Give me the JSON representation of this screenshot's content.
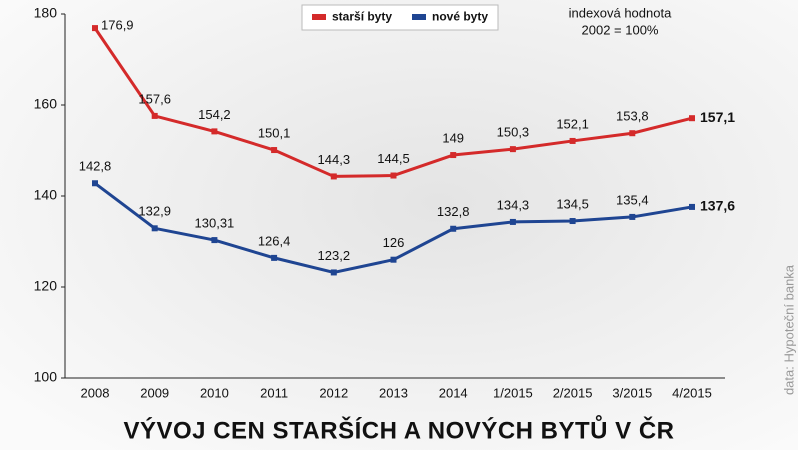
{
  "chart_data": {
    "type": "line",
    "title": "VÝVOJ CEN STARŠÍCH A NOVÝCH BYTŮ V ČR",
    "annotations": [
      "indexová hodnota",
      "2002 = 100%"
    ],
    "source": "data: Hypoteční banka",
    "categories": [
      "2008",
      "2009",
      "2010",
      "2011",
      "2012",
      "2013",
      "2014",
      "1/2015",
      "2/2015",
      "3/2015",
      "4/2015"
    ],
    "series": [
      {
        "name": "starší byty",
        "color": "#d42a2a",
        "values": [
          176.9,
          157.6,
          154.2,
          150.1,
          144.3,
          144.5,
          149,
          150.3,
          152.1,
          153.8,
          157.1
        ],
        "value_labels": [
          "176,9",
          "157,6",
          "154,2",
          "150,1",
          "144,3",
          "144,5",
          "149",
          "150,3",
          "152,1",
          "153,8",
          "157,1"
        ]
      },
      {
        "name": "nové byty",
        "color": "#1f4592",
        "values": [
          142.8,
          132.9,
          130.31,
          126.4,
          123.2,
          126,
          132.8,
          134.3,
          134.5,
          135.4,
          137.6
        ],
        "value_labels": [
          "142,8",
          "132,9",
          "130,31",
          "126,4",
          "123,2",
          "126",
          "132,8",
          "134,3",
          "134,5",
          "135,4",
          "137,6"
        ]
      }
    ],
    "ylim": [
      100,
      180
    ],
    "yticks": [
      100,
      120,
      140,
      160,
      180
    ],
    "legend": "top"
  }
}
